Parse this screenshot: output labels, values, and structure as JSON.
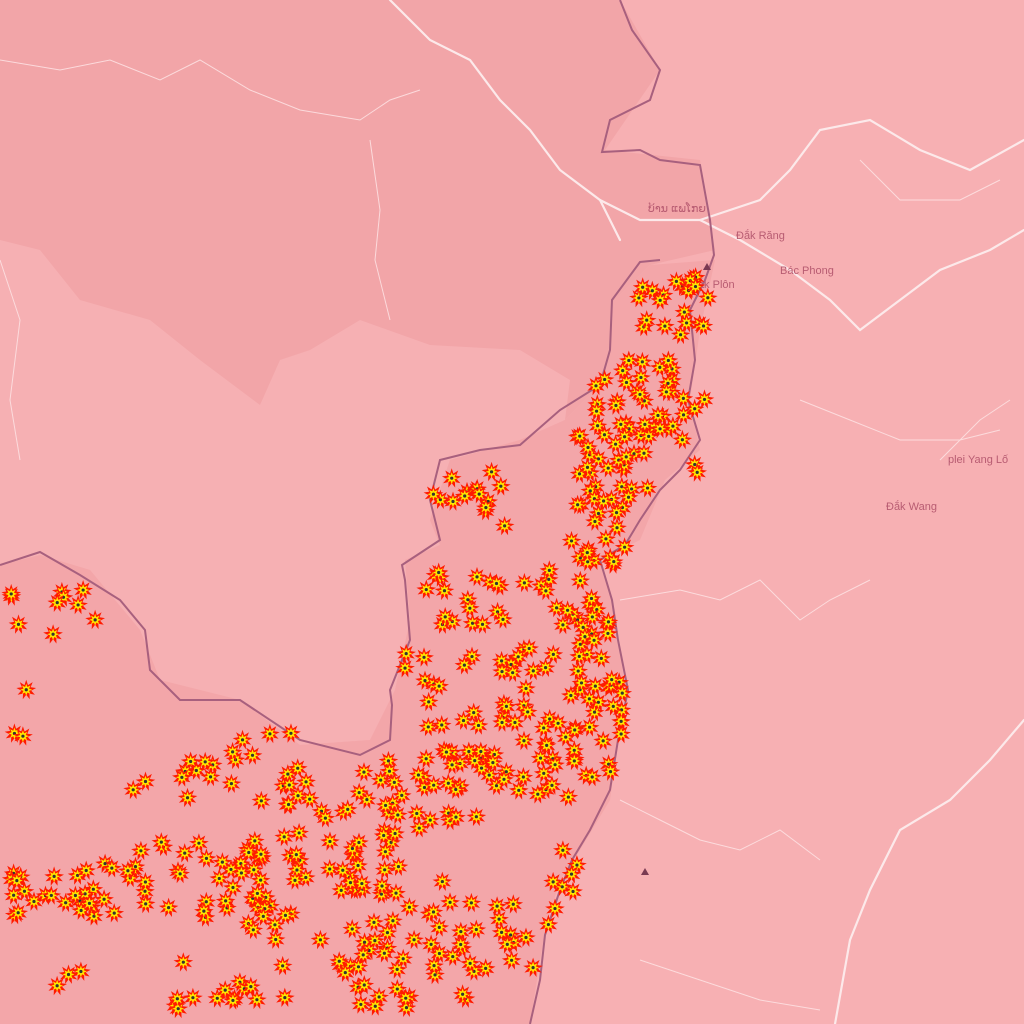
{
  "map": {
    "colors": {
      "land_light": "#f7b0b3",
      "land_dark": "#f2a5a8",
      "border": "#a8607e",
      "road": "#fce9ea",
      "label": "#b85c72",
      "marker_outer": "#ff1a00",
      "marker_inner": "#ffe600"
    },
    "places": [
      {
        "id": "ban-phae",
        "name": "ບ້ານ ແພໂກຍ"
      },
      {
        "id": "dak-rang",
        "name": "Đắk Răng"
      },
      {
        "id": "bac-phong",
        "name": "Bác Phong"
      },
      {
        "id": "dak-plon",
        "name": "Đắk Plôn"
      },
      {
        "id": "plei-yang-lo",
        "name": "plei Yang Lố"
      },
      {
        "id": "dak-wang",
        "name": "Đắk Wang"
      }
    ],
    "markers": {
      "icon": "explosion-icon",
      "count_visible": 480
    }
  }
}
